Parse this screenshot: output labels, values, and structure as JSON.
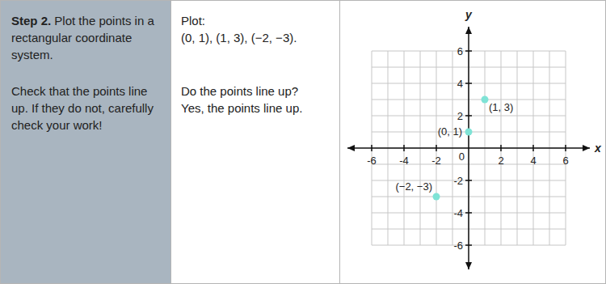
{
  "step": {
    "title": "Step 2.",
    "text": "Plot the points in a rectangular coordinate system.",
    "note": "Check that the points line up. If they do not, carefully check your work!"
  },
  "work": {
    "label": "Plot:",
    "points": "(0, 1), (1, 3), (−2, −3).",
    "question": "Do the points line up?",
    "answer": "Yes, the points line up."
  },
  "chart_data": {
    "type": "scatter",
    "x_label": "x",
    "y_label": "y",
    "x": [
      0,
      1,
      -2
    ],
    "values": [
      1,
      3,
      -3
    ],
    "point_labels": [
      "(0, 1)",
      "(1, 3)",
      "(−2, −3)"
    ],
    "color": "#7fe3d6",
    "marker": "circle",
    "xlim": [
      -7.5,
      7.5
    ],
    "ylim": [
      -7.5,
      7.5
    ],
    "xticks": [
      -6,
      -4,
      -2,
      0,
      2,
      4,
      6
    ],
    "yticks": [
      -6,
      -4,
      -2,
      2,
      4,
      6
    ],
    "grid": true,
    "grid_lines": [
      -6,
      -5,
      -4,
      -3,
      -2,
      -1,
      0,
      1,
      2,
      3,
      4,
      5,
      6
    ]
  }
}
